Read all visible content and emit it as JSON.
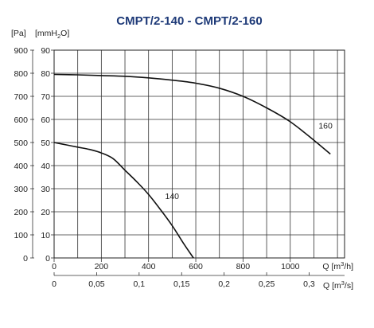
{
  "chart_data": {
    "type": "line",
    "title": "CMPT/2-140 - CMPT/2-160",
    "y_left_label": "[Pa]",
    "y_inner_label_parts": [
      "[mmH",
      "2",
      "O]"
    ],
    "x_primary_label_parts": [
      "Q [m",
      "3",
      "/h]"
    ],
    "x_secondary_label_parts": [
      "Q [m",
      "3",
      "/s]"
    ],
    "y_pa_ticks": [
      "0",
      "100",
      "200",
      "300",
      "400",
      "500",
      "600",
      "700",
      "800",
      "900"
    ],
    "y_mmh2o_ticks": [
      "0",
      "10",
      "20",
      "30",
      "40",
      "50",
      "60",
      "70",
      "80",
      "90"
    ],
    "x_m3h_ticks": [
      "0",
      "200",
      "400",
      "600",
      "800",
      "1000"
    ],
    "x_m3s_ticks": [
      "0",
      "0,05",
      "0,1",
      "0,15",
      "0,2",
      "0,25",
      "0,3"
    ],
    "x_m3h_range": [
      0,
      1230
    ],
    "y_pa_range": [
      0,
      900
    ],
    "grid": true,
    "series": [
      {
        "name": "140",
        "points": [
          [
            0,
            500
          ],
          [
            50,
            490
          ],
          [
            100,
            480
          ],
          [
            150,
            470
          ],
          [
            200,
            455
          ],
          [
            250,
            430
          ],
          [
            300,
            380
          ],
          [
            350,
            330
          ],
          [
            400,
            275
          ],
          [
            450,
            210
          ],
          [
            500,
            140
          ],
          [
            550,
            60
          ],
          [
            590,
            0
          ]
        ]
      },
      {
        "name": "160",
        "points": [
          [
            0,
            795
          ],
          [
            100,
            793
          ],
          [
            200,
            790
          ],
          [
            300,
            787
          ],
          [
            400,
            780
          ],
          [
            500,
            770
          ],
          [
            600,
            757
          ],
          [
            700,
            735
          ],
          [
            800,
            700
          ],
          [
            900,
            650
          ],
          [
            1000,
            590
          ],
          [
            1100,
            510
          ],
          [
            1170,
            450
          ]
        ]
      }
    ]
  }
}
